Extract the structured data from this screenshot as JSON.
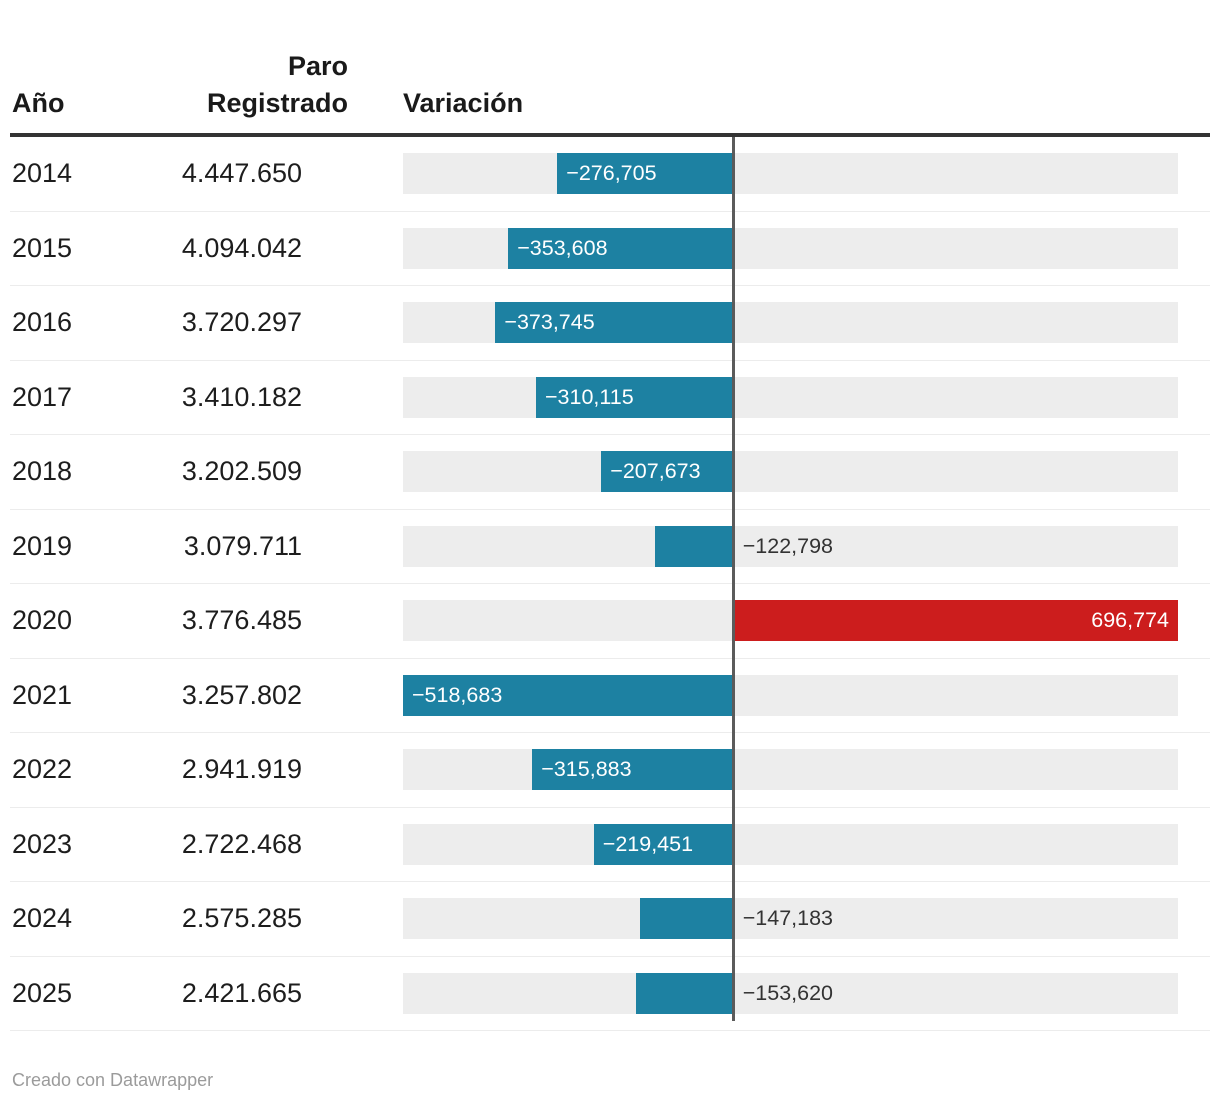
{
  "header": {
    "col_year": "Año",
    "col_paro": "Paro Registrado",
    "col_variation": "Variación"
  },
  "footer": {
    "credit": "Creado con Datawrapper"
  },
  "colors": {
    "negative_bar": "#1d81a2",
    "positive_bar": "#cc1d1d",
    "bar_track": "#ededed",
    "zero_axis": "#5b5b5b",
    "header_rule": "#333333",
    "inside_label": "#ffffff",
    "outside_label": "#333333"
  },
  "rows": [
    {
      "year": "2014",
      "paro": "4.447.650",
      "variation": -276705,
      "variation_label": "−276,705"
    },
    {
      "year": "2015",
      "paro": "4.094.042",
      "variation": -353608,
      "variation_label": "−353,608"
    },
    {
      "year": "2016",
      "paro": "3.720.297",
      "variation": -373745,
      "variation_label": "−373,745"
    },
    {
      "year": "2017",
      "paro": "3.410.182",
      "variation": -310115,
      "variation_label": "−310,115"
    },
    {
      "year": "2018",
      "paro": "3.202.509",
      "variation": -207673,
      "variation_label": "−207,673"
    },
    {
      "year": "2019",
      "paro": "3.079.711",
      "variation": -122798,
      "variation_label": "−122,798"
    },
    {
      "year": "2020",
      "paro": "3.776.485",
      "variation": 696774,
      "variation_label": "696,774"
    },
    {
      "year": "2021",
      "paro": "3.257.802",
      "variation": -518683,
      "variation_label": "−518,683"
    },
    {
      "year": "2022",
      "paro": "2.941.919",
      "variation": -315883,
      "variation_label": "−315,883"
    },
    {
      "year": "2023",
      "paro": "2.722.468",
      "variation": -219451,
      "variation_label": "−219,451"
    },
    {
      "year": "2024",
      "paro": "2.575.285",
      "variation": -147183,
      "variation_label": "−147,183"
    },
    {
      "year": "2025",
      "paro": "2.421.665",
      "variation": -153620,
      "variation_label": "−153,620"
    }
  ],
  "chart_data": {
    "type": "bar",
    "orientation": "horizontal",
    "title": "",
    "categories": [
      "2014",
      "2015",
      "2016",
      "2017",
      "2018",
      "2019",
      "2020",
      "2021",
      "2022",
      "2023",
      "2024",
      "2025"
    ],
    "series": [
      {
        "name": "Paro Registrado",
        "values": [
          4447650,
          4094042,
          3720297,
          3410182,
          3202509,
          3079711,
          3776485,
          3257802,
          2941919,
          2722468,
          2575285,
          2421665
        ]
      },
      {
        "name": "Variación",
        "values": [
          -276705,
          -353608,
          -373745,
          -310115,
          -207673,
          -122798,
          696774,
          -518683,
          -315883,
          -219451,
          -147183,
          -153620
        ]
      }
    ],
    "xlim": [
      -518683,
      696774
    ],
    "zero_axis_line": true,
    "grid": false,
    "legend": "none",
    "negative_color": "#1d81a2",
    "positive_color": "#cc1d1d"
  }
}
